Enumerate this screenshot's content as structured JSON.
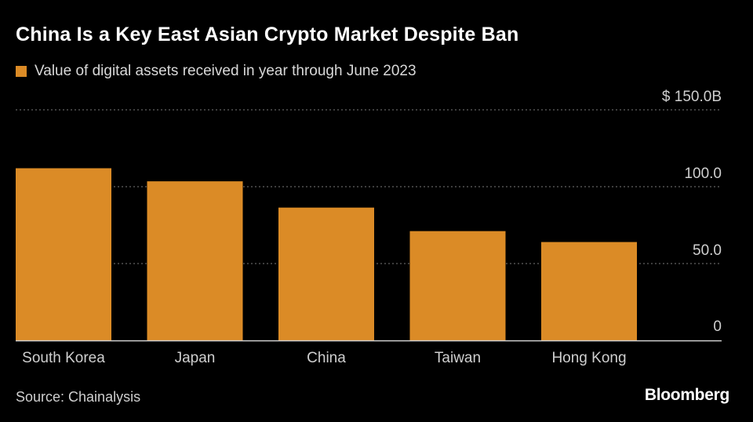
{
  "colors": {
    "background": "#000000",
    "bar": "#db8b26",
    "text": "#ffffff",
    "muted_text": "#cfcfcf",
    "gridline": "#7a7a7a",
    "baseline": "#cfcfcf"
  },
  "chart_data": {
    "type": "bar",
    "title": "China Is a Key East Asian Crypto Market Despite Ban",
    "legend": "Value of digital assets received in year through June 2023",
    "categories": [
      "South Korea",
      "Japan",
      "China",
      "Taiwan",
      "Hong Kong"
    ],
    "values": [
      112,
      103.5,
      86.4,
      71.1,
      64
    ],
    "xlabel": "",
    "ylabel": "",
    "ylim": [
      0,
      150
    ],
    "yticks": [
      0,
      50,
      100,
      150
    ],
    "ytick_labels": [
      "0",
      "50.0",
      "100.0",
      "$ 150.0B"
    ],
    "grid": true,
    "source": "Source: Chainalysis",
    "brand": "Bloomberg"
  }
}
